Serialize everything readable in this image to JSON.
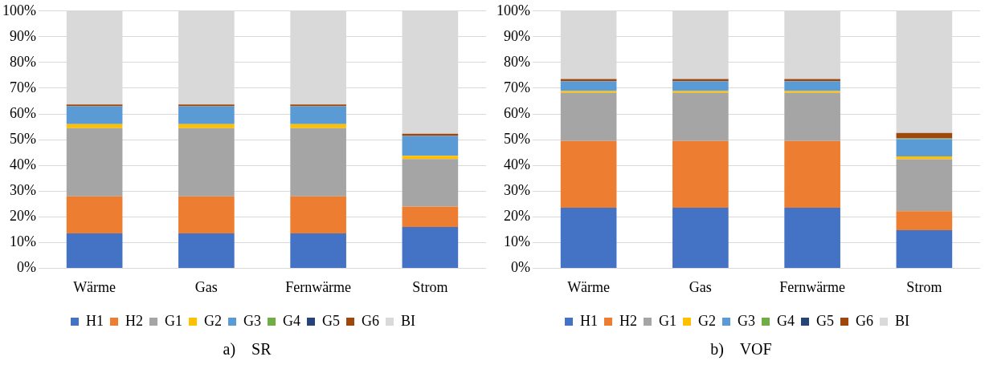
{
  "chart_data": [
    {
      "type": "bar",
      "stacked": true,
      "title": "a)    SR",
      "categories": [
        "Wärme",
        "Gas",
        "Fernwärme",
        "Strom"
      ],
      "ylim": [
        0,
        100
      ],
      "yticks": [
        {
          "value": 0,
          "label": "0%"
        },
        {
          "value": 10,
          "label": "10%"
        },
        {
          "value": 20,
          "label": "20%"
        },
        {
          "value": 30,
          "label": "30%"
        },
        {
          "value": 40,
          "label": "40%"
        },
        {
          "value": 50,
          "label": "50%"
        },
        {
          "value": 60,
          "label": "60%"
        },
        {
          "value": 70,
          "label": "70%"
        },
        {
          "value": 80,
          "label": "80%"
        },
        {
          "value": 90,
          "label": "90%"
        },
        {
          "value": 100,
          "label": "100%"
        }
      ],
      "grid": "y",
      "legend": "bottom",
      "series": [
        {
          "name": "H1",
          "color": "#4472c4",
          "values": [
            13.5,
            13.5,
            13.5,
            16
          ]
        },
        {
          "name": "H2",
          "color": "#ed7d31",
          "values": [
            14.5,
            14.5,
            14.5,
            8
          ]
        },
        {
          "name": "G1",
          "color": "#a5a5a5",
          "values": [
            26.5,
            26.5,
            26.5,
            18.5
          ]
        },
        {
          "name": "G2",
          "color": "#ffc000",
          "values": [
            1.5,
            1.5,
            1.5,
            1.2
          ]
        },
        {
          "name": "G3",
          "color": "#5b9bd5",
          "values": [
            7,
            7,
            7,
            7.7
          ]
        },
        {
          "name": "G4",
          "color": "#70ad47",
          "values": [
            0,
            0,
            0,
            0
          ]
        },
        {
          "name": "G5",
          "color": "#264478",
          "values": [
            0,
            0,
            0,
            0
          ]
        },
        {
          "name": "G6",
          "color": "#9e480e",
          "values": [
            0.7,
            0.7,
            0.7,
            0.9
          ]
        },
        {
          "name": "BI",
          "color": "#d9d9d9",
          "values": [
            36.3,
            36.3,
            36.3,
            47.7
          ]
        }
      ]
    },
    {
      "type": "bar",
      "stacked": true,
      "title": "b)    VOF",
      "categories": [
        "Wärme",
        "Gas",
        "Fernwärme",
        "Strom"
      ],
      "ylim": [
        0,
        100
      ],
      "yticks": [
        {
          "value": 0,
          "label": "0%"
        },
        {
          "value": 10,
          "label": "10%"
        },
        {
          "value": 20,
          "label": "20%"
        },
        {
          "value": 30,
          "label": "30%"
        },
        {
          "value": 40,
          "label": "40%"
        },
        {
          "value": 50,
          "label": "50%"
        },
        {
          "value": 60,
          "label": "60%"
        },
        {
          "value": 70,
          "label": "70%"
        },
        {
          "value": 80,
          "label": "80%"
        },
        {
          "value": 90,
          "label": "90%"
        },
        {
          "value": 100,
          "label": "100%"
        }
      ],
      "grid": "y",
      "legend": "bottom",
      "series": [
        {
          "name": "H1",
          "color": "#4472c4",
          "values": [
            23.5,
            23.5,
            23.5,
            14.8
          ]
        },
        {
          "name": "H2",
          "color": "#ed7d31",
          "values": [
            26,
            26,
            26,
            7.4
          ]
        },
        {
          "name": "G1",
          "color": "#a5a5a5",
          "values": [
            18.7,
            18.7,
            18.7,
            20.2
          ]
        },
        {
          "name": "G2",
          "color": "#ffc000",
          "values": [
            0.7,
            0.7,
            0.7,
            1.1
          ]
        },
        {
          "name": "G3",
          "color": "#5b9bd5",
          "values": [
            3.8,
            3.8,
            3.8,
            6.7
          ]
        },
        {
          "name": "G4",
          "color": "#70ad47",
          "values": [
            0,
            0,
            0,
            0.3
          ]
        },
        {
          "name": "G5",
          "color": "#264478",
          "values": [
            0,
            0,
            0,
            0
          ]
        },
        {
          "name": "G6",
          "color": "#9e480e",
          "values": [
            0.9,
            0.9,
            0.9,
            2.1
          ]
        },
        {
          "name": "BI",
          "color": "#d9d9d9",
          "values": [
            26.4,
            26.4,
            26.4,
            47.4
          ]
        }
      ]
    }
  ]
}
